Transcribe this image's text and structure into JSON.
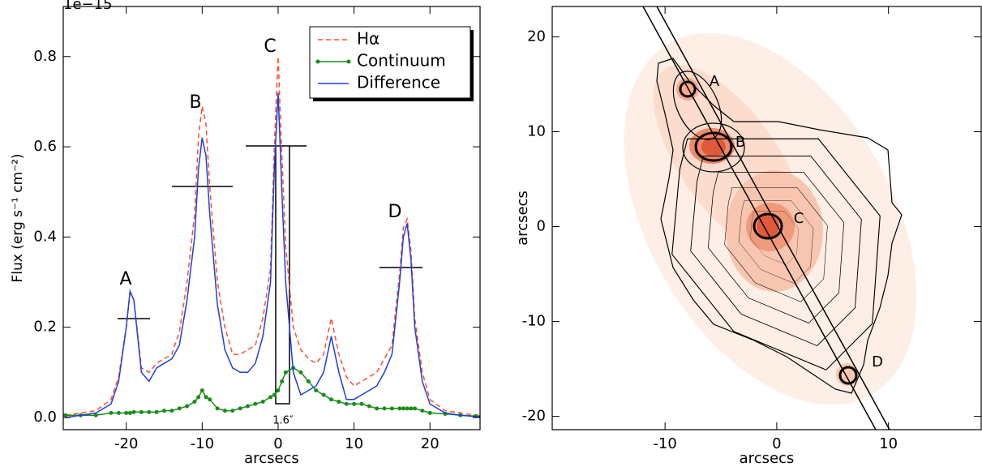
{
  "chart_data": [
    {
      "type": "line",
      "multiplier": "1e−15",
      "xlabel": "arcsecs",
      "ylabel": "Flux (erg s⁻¹ cm⁻²)",
      "x": [
        -28,
        -26,
        -24,
        -22,
        -21,
        -20,
        -19.5,
        -19,
        -18,
        -17,
        -16,
        -15,
        -14,
        -13,
        -12,
        -11,
        -10.5,
        -10,
        -9.5,
        -9,
        -8,
        -7,
        -6,
        -5,
        -4,
        -3,
        -2,
        -1,
        -0.5,
        0,
        0.5,
        1,
        2,
        3,
        4,
        5,
        6,
        7,
        8,
        9,
        10,
        11,
        12,
        13,
        14,
        15,
        16,
        16.5,
        17,
        17.5,
        18,
        19,
        20,
        22,
        24,
        26,
        27
      ],
      "series": [
        {
          "name": "Hα",
          "color": "#ff4d2e",
          "dash": "dashed",
          "values": [
            0.005,
            0.01,
            0.015,
            0.04,
            0.09,
            0.2,
            0.28,
            0.26,
            0.11,
            0.1,
            0.12,
            0.13,
            0.14,
            0.19,
            0.3,
            0.45,
            0.62,
            0.69,
            0.65,
            0.51,
            0.3,
            0.2,
            0.14,
            0.14,
            0.15,
            0.16,
            0.22,
            0.33,
            0.6,
            0.8,
            0.58,
            0.38,
            0.2,
            0.15,
            0.13,
            0.12,
            0.14,
            0.22,
            0.14,
            0.09,
            0.07,
            0.08,
            0.09,
            0.1,
            0.13,
            0.16,
            0.32,
            0.42,
            0.44,
            0.37,
            0.22,
            0.1,
            0.04,
            0.015,
            0.01,
            0.005,
            0.005
          ]
        },
        {
          "name": "Continuum",
          "color": "#1a8c1a",
          "marker": "dot",
          "values": [
            0.005,
            0.005,
            0.005,
            0.01,
            0.01,
            0.01,
            0.01,
            0.012,
            0.012,
            0.012,
            0.012,
            0.015,
            0.015,
            0.02,
            0.025,
            0.035,
            0.045,
            0.06,
            0.045,
            0.04,
            0.02,
            0.015,
            0.015,
            0.02,
            0.025,
            0.03,
            0.035,
            0.045,
            0.05,
            0.06,
            0.08,
            0.1,
            0.11,
            0.1,
            0.08,
            0.06,
            0.05,
            0.04,
            0.035,
            0.03,
            0.03,
            0.03,
            0.025,
            0.02,
            0.02,
            0.02,
            0.02,
            0.02,
            0.02,
            0.02,
            0.02,
            0.015,
            0.01,
            0.008,
            0.005,
            0.003,
            0.003
          ]
        },
        {
          "name": "Difference",
          "color": "#1f3fdc",
          "values": [
            0,
            0.005,
            0.01,
            0.03,
            0.08,
            0.2,
            0.28,
            0.26,
            0.1,
            0.08,
            0.11,
            0.12,
            0.13,
            0.16,
            0.26,
            0.4,
            0.55,
            0.62,
            0.58,
            0.45,
            0.25,
            0.15,
            0.11,
            0.1,
            0.1,
            0.12,
            0.18,
            0.3,
            0.55,
            0.72,
            0.5,
            0.3,
            0.1,
            0.05,
            0.06,
            0.07,
            0.1,
            0.18,
            0.1,
            0.04,
            0.04,
            0.05,
            0.06,
            0.07,
            0.1,
            0.14,
            0.3,
            0.4,
            0.43,
            0.35,
            0.2,
            0.08,
            0.03,
            0.01,
            0.005,
            0.002,
            0.002
          ]
        }
      ],
      "xlim": [
        -28.3,
        26.6
      ],
      "ylim": [
        -0.027,
        0.911
      ],
      "xticks": [
        -20,
        -10,
        0,
        10,
        20
      ],
      "yticks": [
        {
          "value": 0,
          "label": "0.0"
        },
        0.2,
        0.4,
        0.6,
        0.8
      ],
      "legend": "upper right",
      "annotations": [
        "A",
        "B",
        "C",
        "D",
        "1.6″"
      ]
    },
    {
      "type": "image",
      "xlabel": "arcsecs",
      "ylabel": "arcsecs",
      "xlim": [
        -20.1,
        18.3
      ],
      "ylim": [
        -21.4,
        23.2
      ],
      "xticks": [
        -10,
        0,
        10
      ],
      "yticks": [
        -20,
        -10,
        0,
        10,
        20
      ],
      "annotations": [
        "A",
        "B",
        "C",
        "D"
      ]
    }
  ]
}
